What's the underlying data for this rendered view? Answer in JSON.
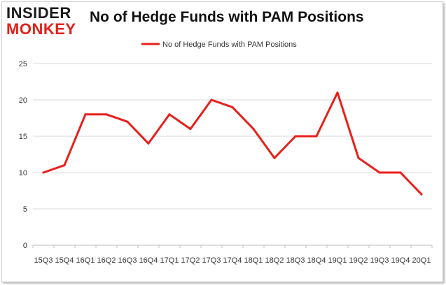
{
  "logo": {
    "line1": "INSIDER",
    "line2": "MONKEY"
  },
  "chart_data": {
    "type": "line",
    "title": "No of Hedge Funds with PAM Positions",
    "categories": [
      "15Q3",
      "15Q4",
      "16Q1",
      "16Q2",
      "16Q3",
      "16Q4",
      "17Q1",
      "17Q2",
      "17Q3",
      "17Q4",
      "18Q1",
      "18Q2",
      "18Q3",
      "18Q4",
      "19Q1",
      "19Q2",
      "19Q3",
      "19Q4",
      "20Q1"
    ],
    "series": [
      {
        "name": "No of Hedge Funds with PAM Positions",
        "color": "#e8201c",
        "values": [
          10,
          11,
          18,
          18,
          17,
          14,
          18,
          16,
          20,
          19,
          16,
          12,
          15,
          15,
          21,
          12,
          10,
          10,
          7
        ]
      }
    ],
    "ylim": [
      0,
      25
    ],
    "yticks": [
      0,
      5,
      10,
      15,
      20,
      25
    ],
    "grid": true,
    "legend": "top-center"
  }
}
